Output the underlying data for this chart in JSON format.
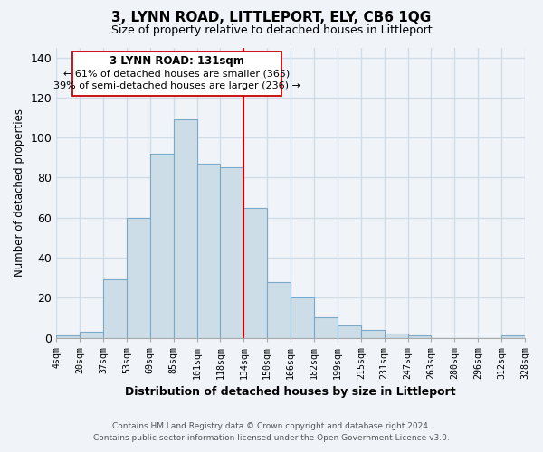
{
  "title": "3, LYNN ROAD, LITTLEPORT, ELY, CB6 1QG",
  "subtitle": "Size of property relative to detached houses in Littleport",
  "xlabel": "Distribution of detached houses by size in Littleport",
  "ylabel": "Number of detached properties",
  "bar_labels": [
    "4sqm",
    "20sqm",
    "37sqm",
    "53sqm",
    "69sqm",
    "85sqm",
    "101sqm",
    "118sqm",
    "134sqm",
    "150sqm",
    "166sqm",
    "182sqm",
    "199sqm",
    "215sqm",
    "231sqm",
    "247sqm",
    "263sqm",
    "280sqm",
    "296sqm",
    "312sqm",
    "328sqm"
  ],
  "bar_heights": [
    1,
    3,
    29,
    60,
    92,
    109,
    87,
    85,
    65,
    28,
    20,
    10,
    6,
    4,
    2,
    1,
    0,
    0,
    0,
    1
  ],
  "bar_color": "#ccdde8",
  "bar_edge_color": "#7aaac8",
  "vline_x_label": "134sqm",
  "vline_color": "#cc0000",
  "annotation_title": "3 LYNN ROAD: 131sqm",
  "annotation_line1": "← 61% of detached houses are smaller (365)",
  "annotation_line2": "39% of semi-detached houses are larger (236) →",
  "annotation_box_color": "#ffffff",
  "annotation_box_edge": "#cc0000",
  "ylim": [
    0,
    145
  ],
  "yticks": [
    0,
    20,
    40,
    60,
    80,
    100,
    120,
    140
  ],
  "footer_line1": "Contains HM Land Registry data © Crown copyright and database right 2024.",
  "footer_line2": "Contains public sector information licensed under the Open Government Licence v3.0.",
  "background_color": "#f0f4f8",
  "grid_color": "#d0dce8"
}
